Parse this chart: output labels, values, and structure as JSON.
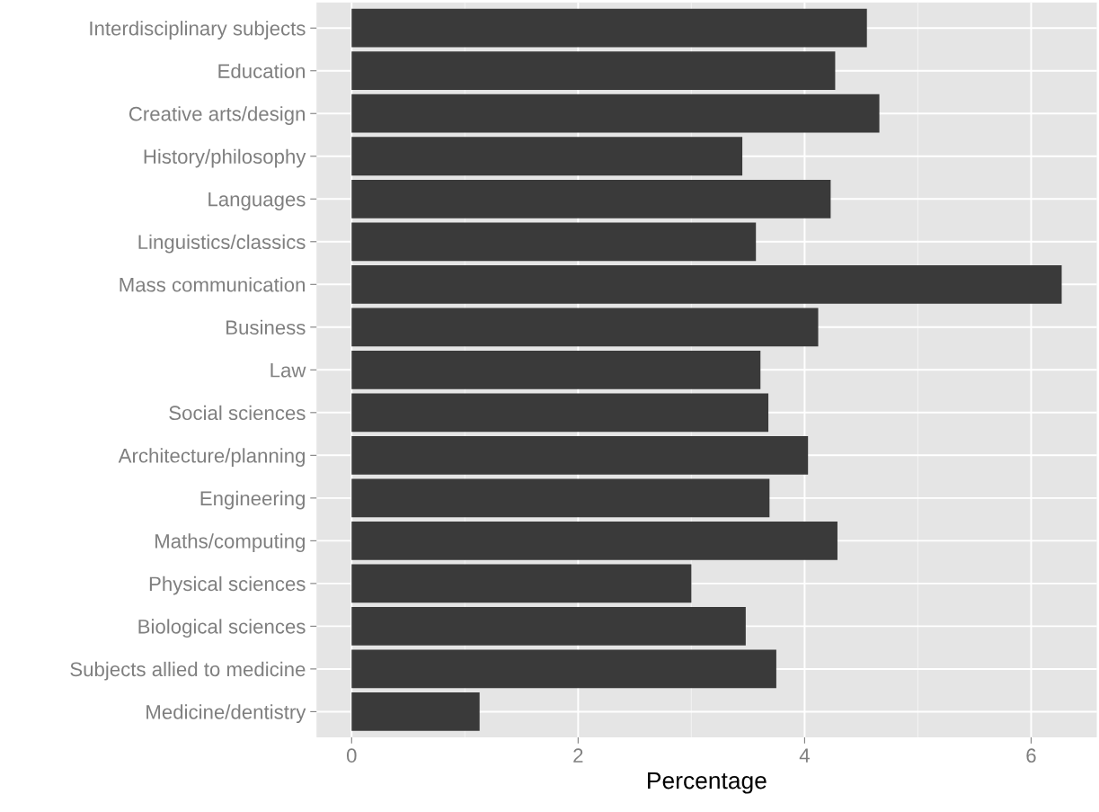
{
  "chart_data": {
    "type": "bar",
    "orientation": "horizontal",
    "xlabel": "Percentage",
    "categories": [
      "Interdisciplinary subjects",
      "Education",
      "Creative arts/design",
      "History/philosophy",
      "Languages",
      "Linguistics/classics",
      "Mass communication",
      "Business",
      "Law",
      "Social sciences",
      "Architecture/planning",
      "Engineering",
      "Maths/computing",
      "Physical sciences",
      "Biological sciences",
      "Subjects allied to medicine",
      "Medicine/dentistry"
    ],
    "values": [
      4.55,
      4.27,
      4.66,
      3.45,
      4.23,
      3.57,
      6.27,
      4.12,
      3.61,
      3.68,
      4.03,
      3.69,
      4.29,
      3.0,
      3.48,
      3.75,
      1.13
    ],
    "color": "#3a3a3a",
    "xlim": [
      -0.31,
      6.58
    ],
    "xticks": [
      0,
      2,
      4,
      6
    ],
    "grid": true
  }
}
